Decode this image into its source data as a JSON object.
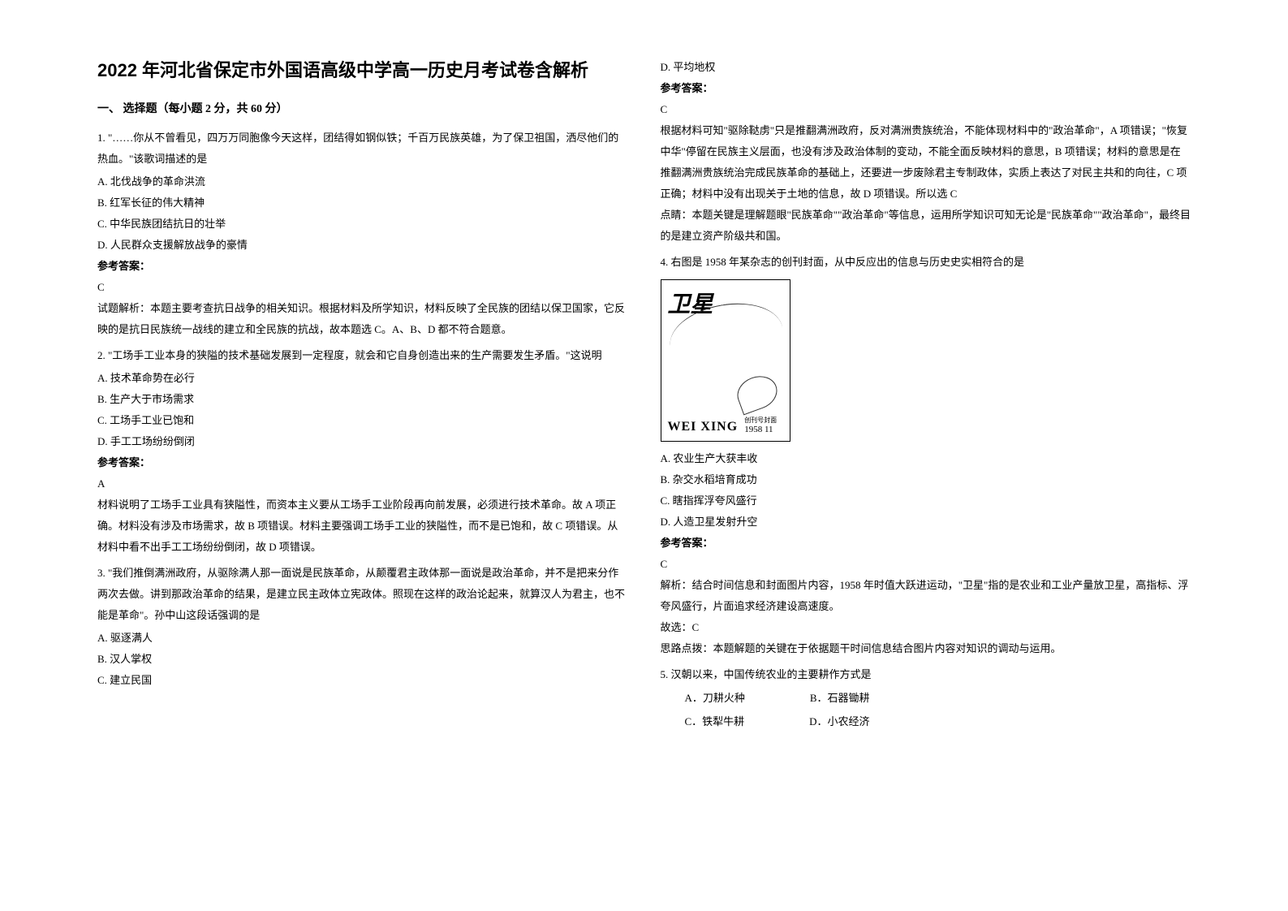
{
  "title": "2022 年河北省保定市外国语高级中学高一历史月考试卷含解析",
  "section_header": "一、 选择题（每小题 2 分，共 60 分）",
  "q1": {
    "text": "1. \"……你从不曾看见，四万万同胞像今天这样，团结得如钢似铁；千百万民族英雄，为了保卫祖国，洒尽他们的热血。\"该歌词描述的是",
    "optA": "A. 北伐战争的革命洪流",
    "optB": "B. 红军长征的伟大精神",
    "optC": "C. 中华民族团结抗日的壮举",
    "optD": "D. 人民群众支援解放战争的豪情",
    "answer_label": "参考答案：",
    "answer": "C",
    "explanation": "试题解析：本题主要考查抗日战争的相关知识。根据材料及所学知识，材料反映了全民族的团结以保卫国家，它反映的是抗日民族统一战线的建立和全民族的抗战，故本题选 C。A、B、D 都不符合题意。"
  },
  "q2": {
    "text": "2. \"工场手工业本身的狭隘的技术基础发展到一定程度，就会和它自身创造出来的生产需要发生矛盾。\"这说明",
    "optA": "A. 技术革命势在必行",
    "optB": "B. 生产大于市场需求",
    "optC": "C. 工场手工业已饱和",
    "optD": "D. 手工工场纷纷倒闭",
    "answer_label": "参考答案：",
    "answer": "A",
    "explanation": "材料说明了工场手工业具有狭隘性，而资本主义要从工场手工业阶段再向前发展，必须进行技术革命。故 A 项正确。材料没有涉及市场需求，故 B 项错误。材料主要强调工场手工业的狭隘性，而不是已饱和，故 C 项错误。从材料中看不出手工工场纷纷倒闭，故 D 项错误。"
  },
  "q3": {
    "text": "3. \"我们推倒满洲政府，从驱除满人那一面说是民族革命，从颠覆君主政体那一面说是政治革命，并不是把来分作两次去做。讲到那政治革命的结果，是建立民主政体立宪政体。照现在这样的政治论起来，就算汉人为君主，也不能是革命\"。孙中山这段话强调的是",
    "optA": "A. 驱逐满人",
    "optB": "B. 汉人掌权",
    "optC": "C. 建立民国",
    "optD": "D. 平均地权",
    "answer_label": "参考答案：",
    "answer": "C",
    "explanation": "根据材料可知\"驱除鞑虏\"只是推翻满洲政府，反对满洲贵族统治，不能体现材料中的\"政治革命\"，A 项错误；\"恢复中华\"停留在民族主义层面，也没有涉及政治体制的变动，不能全面反映材料的意思，B 项错误；材料的意思是在推翻满洲贵族统治完成民族革命的基础上，还要进一步废除君主专制政体，实质上表达了对民主共和的向往，C 项正确；材料中没有出现关于土地的信息，故 D 项错误。所以选 C",
    "hint": "点睛：本题关键是理解题眼\"民族革命\"\"政治革命\"等信息，运用所学知识可知无论是\"民族革命\"\"政治革命\"，最终目的是建立资产阶级共和国。"
  },
  "q4": {
    "text": "4. 右图是 1958 年某杂志的创刊封面，从中反应出的信息与历史史实相符合的是",
    "image_title": "卫星",
    "image_wei_xing": "WEI XING",
    "image_date": "1958 11",
    "image_subtitle": "创刊号封面",
    "optA": "A. 农业生产大获丰收",
    "optB": "B. 杂交水稻培育成功",
    "optC": "C. 瞎指挥浮夸风盛行",
    "optD": "D.    人造卫星发射升空",
    "answer_label": "参考答案：",
    "answer": "C",
    "explanation1": "解析：结合时间信息和封面图片内容，1958 年时值大跃进运动，\"卫星\"指的是农业和工业产量放卫星，高指标、浮夸风盛行，片面追求经济建设高速度。",
    "explanation2": "故选：C",
    "explanation3": "思路点拨：本题解题的关键在于依据题干时间信息结合图片内容对知识的调动与运用。"
  },
  "q5": {
    "text": "5. 汉朝以来，中国传统农业的主要耕作方式是",
    "optA": "A．刀耕火种",
    "optB": "B．石器锄耕",
    "optC": "C．铁犁牛耕",
    "optD": "D．小农经济"
  }
}
